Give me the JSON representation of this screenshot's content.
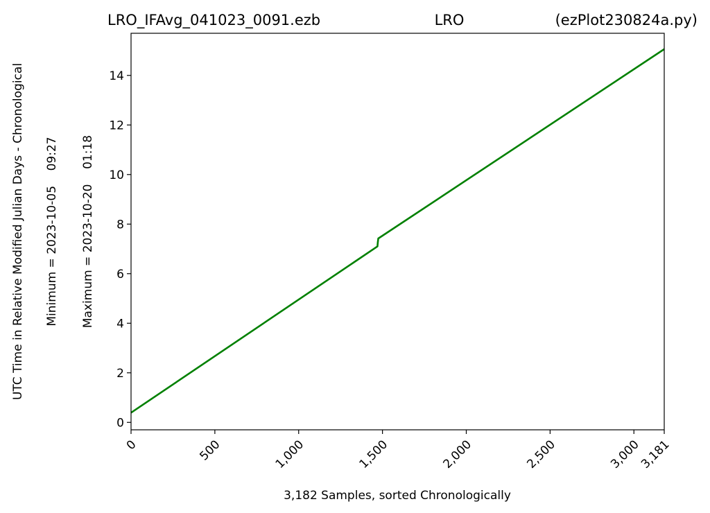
{
  "title": {
    "left": "LRO_IFAvg_041023_0091.ezb",
    "center": "LRO",
    "right": "(ezPlot230824a.py)"
  },
  "chart_data": {
    "type": "line",
    "xlabel": "3,182 Samples, sorted Chronologically",
    "ylabel": "UTC Time in Relative Modified Julian Days - Chronological",
    "ylabel_min": "Minimum = 2023-10-05    09:27",
    "ylabel_max": "Maximum = 2023-10-20    01:18",
    "xlim": [
      0,
      3181
    ],
    "ylim": [
      -0.3,
      15.7
    ],
    "xticks": [
      0,
      500,
      1000,
      1500,
      2000,
      2500,
      3000,
      3181
    ],
    "xtick_labels": [
      "0",
      "500",
      "1,000",
      "1,500",
      "2,000",
      "2,500",
      "3,000",
      "3,181"
    ],
    "yticks": [
      0,
      2,
      4,
      6,
      8,
      10,
      12,
      14
    ],
    "ytick_labels": [
      "0",
      "2",
      "4",
      "6",
      "8",
      "10",
      "12",
      "14"
    ],
    "grid": false,
    "series": [
      {
        "color": "#008000",
        "x": [
          0,
          1470,
          1472,
          1475,
          3181
        ],
        "y": [
          0.39,
          7.1,
          7.25,
          7.42,
          15.06
        ]
      }
    ]
  }
}
